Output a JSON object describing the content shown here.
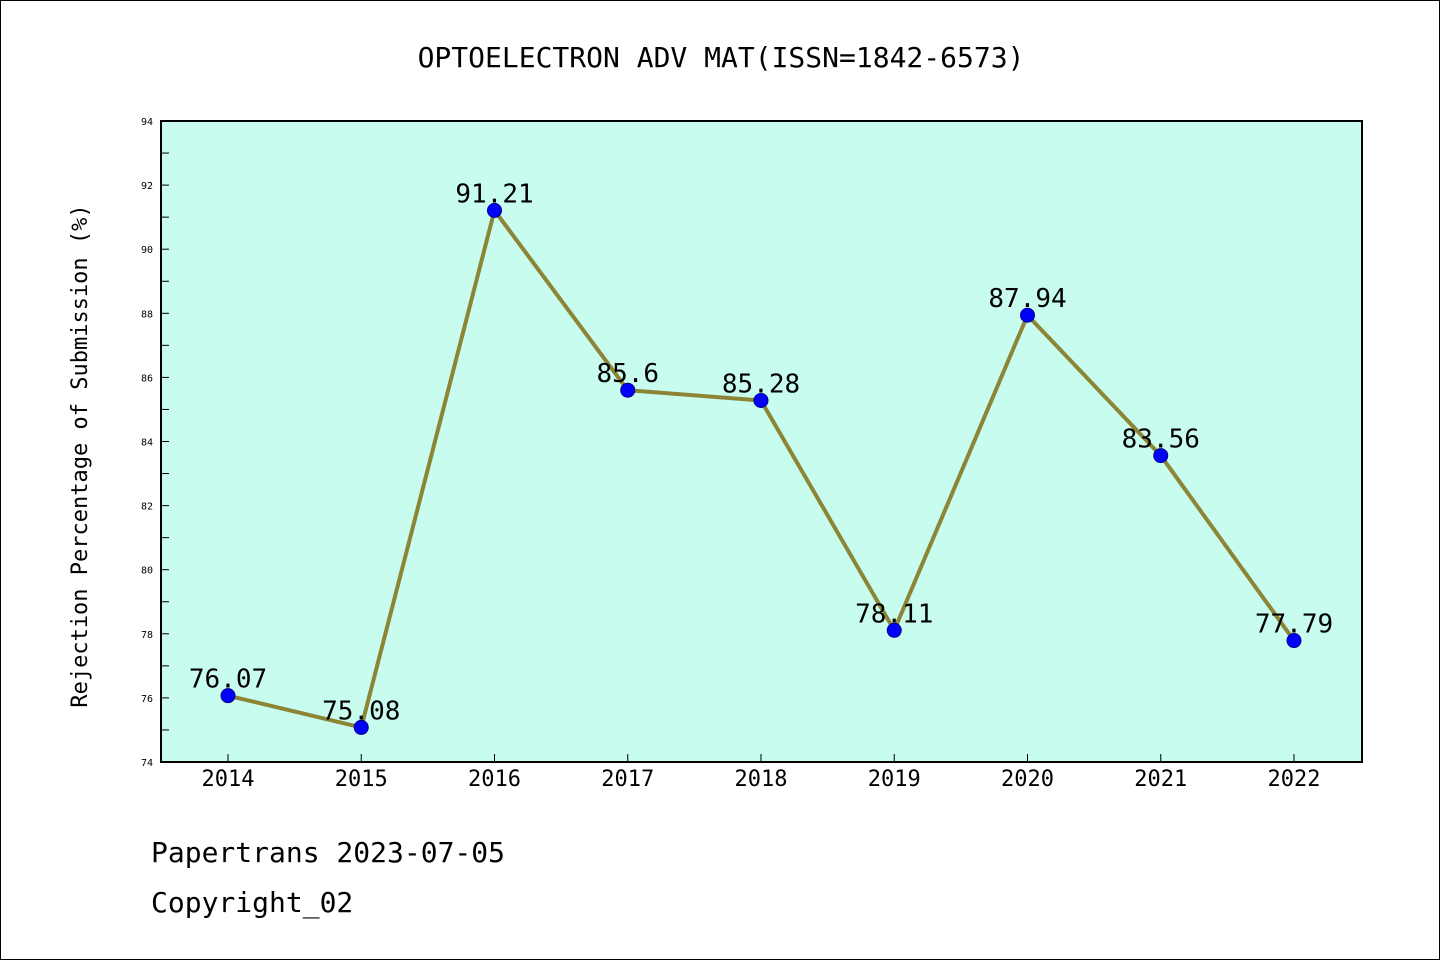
{
  "chart_data": {
    "type": "line",
    "title": "OPTOELECTRON ADV MAT(ISSN=1842-6573)",
    "xlabel": "",
    "ylabel": "Rejection Percentage of Submission (%)",
    "categories": [
      "2014",
      "2015",
      "2016",
      "2017",
      "2018",
      "2019",
      "2020",
      "2021",
      "2022"
    ],
    "values": [
      76.07,
      75.08,
      91.21,
      85.6,
      85.28,
      78.11,
      87.94,
      83.56,
      77.79
    ],
    "data_labels": [
      "76.07",
      "75.08",
      "91.21",
      "85.6",
      "85.28",
      "78.11",
      "87.94",
      "83.56",
      "77.79"
    ],
    "ylim": [
      74,
      94
    ],
    "yticks": [
      "74",
      "76",
      "78",
      "80",
      "82",
      "84",
      "86",
      "88",
      "90",
      "92",
      "94"
    ],
    "grid": false,
    "legend": "none",
    "colors": {
      "plot_background": "#c8fcee",
      "line": "#8b8535",
      "marker": "#0000ff"
    }
  },
  "footer": {
    "line1": "Papertrans 2023-07-05",
    "line2": "Copyright_02"
  }
}
